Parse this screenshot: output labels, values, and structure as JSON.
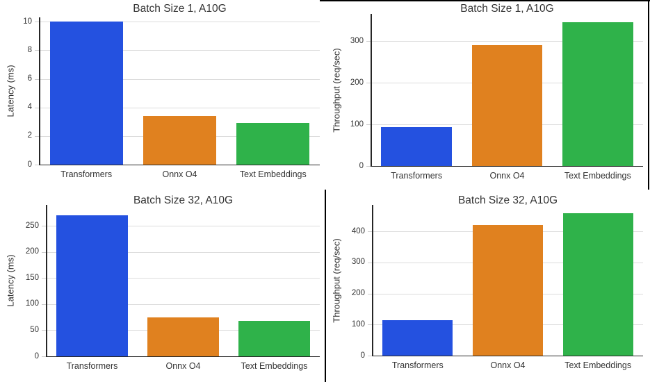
{
  "figure": {
    "description_colors": {
      "background": "#ffffff",
      "grid": "#dcdcdc",
      "spine": "#262626",
      "text": "#333333",
      "divider": "#000000"
    },
    "palette": [
      "#2451E0",
      "#E0811F",
      "#2FB24A"
    ]
  },
  "chart_data": [
    {
      "type": "bar",
      "title": "Batch Size 1, A10G",
      "ylabel": "Latency (ms)",
      "xlabel": "",
      "categories": [
        "Transformers",
        "Onnx O4",
        "Text Embeddings"
      ],
      "values": [
        10.0,
        3.4,
        2.9
      ],
      "yticks": [
        0,
        2,
        4,
        6,
        8,
        10
      ],
      "ylim": [
        0,
        10.3
      ],
      "grid": "horizontal",
      "legend": "none"
    },
    {
      "type": "bar",
      "title": "Batch Size 1, A10G",
      "ylabel": "Throughput (req/sec)",
      "xlabel": "",
      "categories": [
        "Transformers",
        "Onnx O4",
        "Text Embeddings"
      ],
      "values": [
        93,
        290,
        345
      ],
      "yticks": [
        0,
        100,
        200,
        300
      ],
      "ylim": [
        0,
        365
      ],
      "grid": "horizontal",
      "legend": "none"
    },
    {
      "type": "bar",
      "title": "Batch Size 32, A10G",
      "ylabel": "Latency (ms)",
      "xlabel": "",
      "categories": [
        "Transformers",
        "Onnx O4",
        "Text Embeddings"
      ],
      "values": [
        270,
        75,
        68
      ],
      "yticks": [
        0,
        50,
        100,
        150,
        200,
        250
      ],
      "ylim": [
        0,
        290
      ],
      "grid": "horizontal",
      "legend": "none"
    },
    {
      "type": "bar",
      "title": "Batch Size 32, A10G",
      "ylabel": "Throughput (req/sec)",
      "xlabel": "",
      "categories": [
        "Transformers",
        "Onnx O4",
        "Text Embeddings"
      ],
      "values": [
        115,
        420,
        458
      ],
      "yticks": [
        0,
        100,
        200,
        300,
        400
      ],
      "ylim": [
        0,
        485
      ],
      "grid": "horizontal",
      "legend": "none"
    }
  ]
}
